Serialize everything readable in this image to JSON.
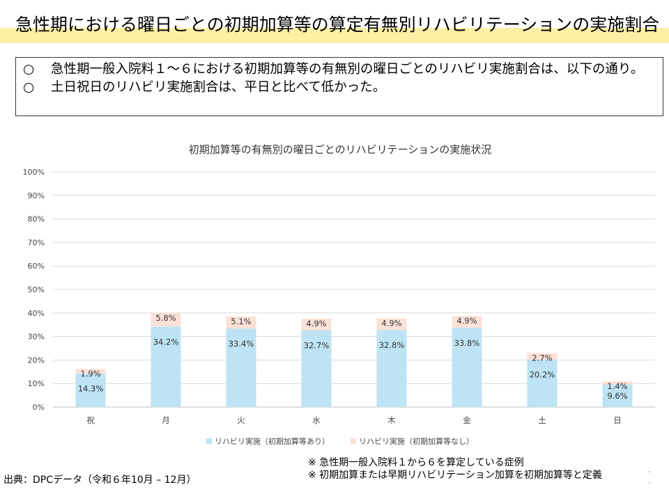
{
  "header": {
    "title": "急性期における曜日ごとの初期加算等の算定有無別リハビリテーションの実施割合"
  },
  "summary": {
    "items": [
      {
        "mark": "○",
        "text": "急性期一般入院料１～６における初期加算等の有無別の曜日ごとのリハビリ実施割合は、以下の通り。"
      },
      {
        "mark": "○",
        "text": "土日祝日のリハビリ実施割合は、平日と比べて低かった。"
      }
    ]
  },
  "chart_data": {
    "type": "bar",
    "stacked": true,
    "title": "初期加算等の有無別の曜日ごとのリハビリテーションの実施状況",
    "categories": [
      "祝",
      "月",
      "火",
      "水",
      "木",
      "金",
      "土",
      "日"
    ],
    "series": [
      {
        "name": "リハビリ実施（初期加算等あり）",
        "color": "#bde3f4",
        "values": [
          14.3,
          34.2,
          33.4,
          32.7,
          32.8,
          33.8,
          20.2,
          9.6
        ],
        "labels": [
          "14.3%",
          "34.2%",
          "33.4%",
          "32.7%",
          "32.8%",
          "33.8%",
          "20.2%",
          "9.6%"
        ]
      },
      {
        "name": "リハビリ実施（初期加算等なし）",
        "color": "#fce1d6",
        "values": [
          1.9,
          5.8,
          5.1,
          4.9,
          4.9,
          4.9,
          2.7,
          1.4
        ],
        "labels": [
          "1.9%",
          "5.8%",
          "5.1%",
          "4.9%",
          "4.9%",
          "4.9%",
          "2.7%",
          "1.4%"
        ]
      }
    ],
    "yticks": [
      "0%",
      "10%",
      "20%",
      "30%",
      "40%",
      "50%",
      "60%",
      "70%",
      "80%",
      "90%",
      "100%"
    ],
    "ylim": [
      0,
      100
    ],
    "grid": true,
    "legend": "bottom"
  },
  "footer": {
    "source": "出典：DPCデータ（令和６年10月 – 12月）",
    "note1": "※ 急性期一般入院料１から６を算定している症例",
    "note2": "※ 初期加算または早期リハビリテーション加算を初期加算等と定義"
  }
}
